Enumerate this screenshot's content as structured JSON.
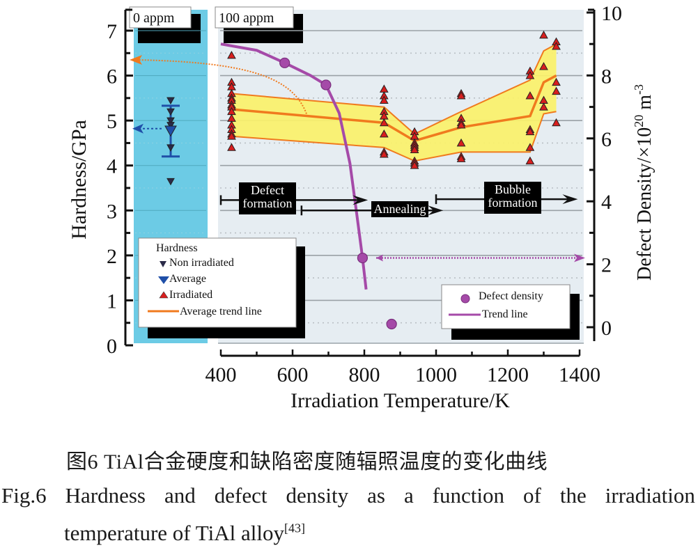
{
  "chart_data": {
    "type": "scatter",
    "title": "",
    "xlabel": "Irradiation Temperature/K",
    "ylabel_left": "Hardness/GPa",
    "ylabel_right": {
      "base": "Defect Density/×10",
      "exp": "20",
      "unit": " m",
      "unit_exp": "-3"
    },
    "xlim": [
      400,
      1400
    ],
    "ylim_left": [
      0,
      7
    ],
    "ylim_right": [
      0,
      10
    ],
    "x_ticks": [
      "400",
      "600",
      "800",
      "1000",
      "1200",
      "1400"
    ],
    "y_ticks_left": [
      "0",
      "1",
      "2",
      "3",
      "4",
      "5",
      "6",
      "7"
    ],
    "y_ticks_right": [
      "0",
      "2",
      "4",
      "6",
      "8",
      "10"
    ],
    "grid": true,
    "panels": {
      "left_label": "0 appm",
      "right_label": "100 appm"
    },
    "non_irradiated": {
      "values": [
        5.45,
        5.2,
        5.0,
        4.9,
        4.75,
        4.4,
        3.65
      ],
      "average": 4.78,
      "error_low": 4.2,
      "error_high": 5.33
    },
    "irradiated": [
      {
        "x": 430,
        "y": [
          6.45,
          5.85,
          5.75,
          5.6,
          5.5,
          5.45,
          5.35,
          5.3,
          5.2,
          5.05,
          4.9,
          4.8,
          4.7,
          4.65,
          4.4
        ]
      },
      {
        "x": 855,
        "y": [
          5.7,
          5.55,
          5.45,
          5.2,
          5.1,
          4.95,
          4.7,
          4.3,
          4.25
        ]
      },
      {
        "x": 940,
        "y": [
          4.75,
          4.65,
          4.5,
          4.45,
          4.4,
          4.35,
          4.1,
          4.05,
          4.0
        ]
      },
      {
        "x": 1070,
        "y": [
          5.6,
          5.55,
          5.05,
          4.95,
          4.9,
          4.5,
          4.2,
          4.15
        ]
      },
      {
        "x": 1262,
        "y": [
          6.1,
          6.0,
          5.55,
          4.8,
          4.75,
          4.4,
          4.1
        ]
      },
      {
        "x": 1300,
        "y": [
          6.9,
          6.2,
          5.45,
          5.3
        ]
      },
      {
        "x": 1335,
        "y": [
          6.75,
          6.65,
          5.85,
          5.65,
          4.95
        ]
      }
    ],
    "trend": {
      "x": [
        430,
        855,
        940,
        1070,
        1262,
        1300,
        1335
      ],
      "average": [
        5.25,
        4.95,
        4.55,
        4.85,
        5.1,
        5.85,
        6.0
      ],
      "upper": [
        5.6,
        5.3,
        4.7,
        5.2,
        5.9,
        6.55,
        6.7
      ],
      "lower": [
        4.65,
        4.4,
        4.1,
        4.3,
        4.3,
        5.15,
        5.2
      ]
    },
    "defect_density": {
      "x": [
        578,
        693,
        795,
        876
      ],
      "y": [
        8.4,
        7.7,
        2.2,
        0.1
      ]
    },
    "defect_trend_line": {
      "x": [
        400,
        500,
        578,
        650,
        693,
        730,
        760,
        780,
        795,
        805
      ],
      "y": [
        9.0,
        8.8,
        8.4,
        8.0,
        7.7,
        6.8,
        5.2,
        3.5,
        2.2,
        1.2
      ]
    },
    "annotations": [
      {
        "text": [
          "Defect",
          "formation"
        ],
        "range": [
          400,
          810
        ]
      },
      {
        "text": [
          "Annealing"
        ],
        "range": [
          625,
          1020
        ]
      },
      {
        "text": [
          "Bubble",
          "formation"
        ],
        "range": [
          1000,
          1395
        ]
      }
    ],
    "legend_hardness": {
      "title": "Hardness",
      "items": [
        "Non irradiated",
        "Average",
        "Irradiated",
        "Average trend line"
      ]
    },
    "legend_defect": {
      "items": [
        "Defect density",
        "Trend line"
      ]
    },
    "colors": {
      "panel_left": "#6ccbe5",
      "panel_right": "#e6edf2",
      "band": "#fbf16a",
      "trend": "#f07a1e",
      "irradiated": "#d81e1e",
      "non_irradiated": "#2a2a48",
      "average": "#1f4fa8",
      "defect": "#a54aa8"
    }
  },
  "caption": {
    "chinese": "图6  TiAl合金硬度和缺陷密度随辐照温度的变化曲线",
    "english_line1": [
      "Fig.6",
      "Hardness",
      "and",
      "defect",
      "density",
      "as",
      "a",
      "function",
      "of",
      "the",
      "irradiation"
    ],
    "english_line2": "temperature of TiAl alloy",
    "reference": "[43]"
  }
}
